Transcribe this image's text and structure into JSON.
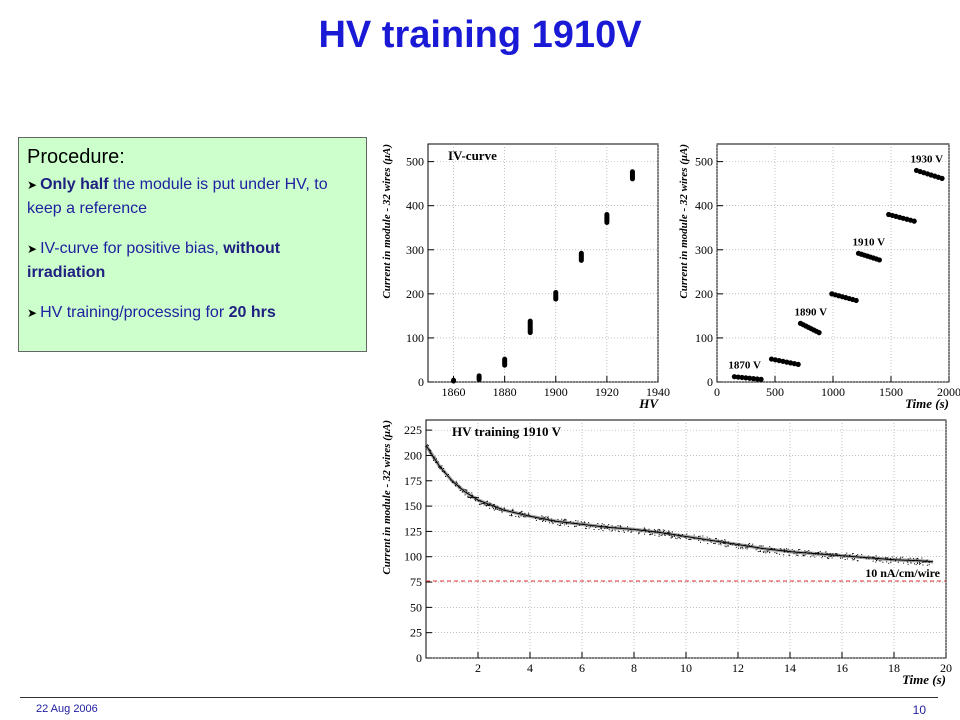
{
  "slide": {
    "title": "HV training 1910V",
    "date": "22 Aug 2006",
    "page": "10"
  },
  "procedure": {
    "heading": "Procedure:",
    "items": [
      {
        "bold": "Only half",
        "rest": " the module is put under HV, to keep a reference",
        "pre": "",
        "bold2": ""
      },
      {
        "pre": "IV-curve for positive bias, ",
        "bold": "without irradiation",
        "rest": "",
        "bold2": ""
      },
      {
        "pre": "HV training/processing for ",
        "bold": "20 hrs",
        "rest": "",
        "bold2": ""
      }
    ]
  },
  "colors": {
    "title": "#1a1ad6",
    "box_fill": "#ccffcc",
    "threshold": "#e03030",
    "text_blue": "#2020a0"
  },
  "chart_data": [
    {
      "type": "scatter",
      "title": "IV-curve",
      "xlabel": "HV",
      "ylabel": "Current in module - 32 wires (μA)",
      "xlim": [
        1850,
        1940
      ],
      "ylim": [
        0,
        540
      ],
      "xticks": [
        1860,
        1880,
        1900,
        1920,
        1940
      ],
      "yticks": [
        0,
        100,
        200,
        300,
        400,
        500
      ],
      "grid": true,
      "series": [
        {
          "values": [
            {
              "x": 1860,
              "y": [
                2,
                4
              ]
            },
            {
              "x": 1870,
              "y": [
                6,
                14
              ]
            },
            {
              "x": 1880,
              "y": [
                38,
                52
              ]
            },
            {
              "x": 1890,
              "y": [
                112,
                138
              ]
            },
            {
              "x": 1900,
              "y": [
                188,
                203
              ]
            },
            {
              "x": 1910,
              "y": [
                276,
                292
              ]
            },
            {
              "x": 1920,
              "y": [
                362,
                380
              ]
            },
            {
              "x": 1930,
              "y": [
                461,
                477
              ]
            }
          ]
        }
      ]
    },
    {
      "type": "scatter",
      "xlabel": "Time (s)",
      "ylabel": "Current in module - 32 wires (μA)",
      "xlim": [
        0,
        2000
      ],
      "ylim": [
        0,
        540
      ],
      "xticks": [
        0,
        500,
        1000,
        1500,
        2000
      ],
      "yticks": [
        0,
        100,
        200,
        300,
        400,
        500
      ],
      "grid": true,
      "segments": [
        {
          "label": "1870 V",
          "x_start": 150,
          "x_end": 380,
          "y_start": 12,
          "y_end": 6
        },
        {
          "label": "",
          "x_start": 470,
          "x_end": 700,
          "y_start": 52,
          "y_end": 40
        },
        {
          "label": "1890 V",
          "x_start": 720,
          "x_end": 880,
          "y_start": 133,
          "y_end": 112
        },
        {
          "label": "",
          "x_start": 990,
          "x_end": 1200,
          "y_start": 200,
          "y_end": 185
        },
        {
          "label": "1910 V",
          "x_start": 1220,
          "x_end": 1400,
          "y_start": 292,
          "y_end": 277
        },
        {
          "label": "",
          "x_start": 1480,
          "x_end": 1700,
          "y_start": 380,
          "y_end": 365
        },
        {
          "label": "1930 V",
          "x_start": 1720,
          "x_end": 1940,
          "y_start": 480,
          "y_end": 462
        }
      ]
    },
    {
      "type": "line",
      "title": "HV training 1910 V",
      "xlabel": "Time (s)",
      "ylabel": "Current in module - 32 wires (μA)",
      "xlim": [
        0,
        20
      ],
      "ylim": [
        0,
        235
      ],
      "xticks": [
        2,
        4,
        6,
        8,
        10,
        12,
        14,
        16,
        18,
        20
      ],
      "yticks": [
        0,
        25,
        50,
        75,
        100,
        125,
        150,
        175,
        200,
        225
      ],
      "grid": true,
      "series": [
        {
          "x": [
            0,
            0.5,
            1,
            1.5,
            2,
            3,
            4,
            5,
            6,
            7,
            8,
            9,
            10,
            11,
            12,
            13,
            14,
            15,
            16,
            17,
            18,
            19,
            19.5
          ],
          "values": [
            210,
            190,
            175,
            164,
            156,
            146,
            140,
            135,
            132,
            129,
            127,
            124,
            120,
            116,
            112,
            108,
            105,
            103,
            101,
            99,
            97,
            96,
            95
          ]
        }
      ],
      "annotation": {
        "text": "10 nA/cm/wire",
        "y": 76
      }
    }
  ]
}
